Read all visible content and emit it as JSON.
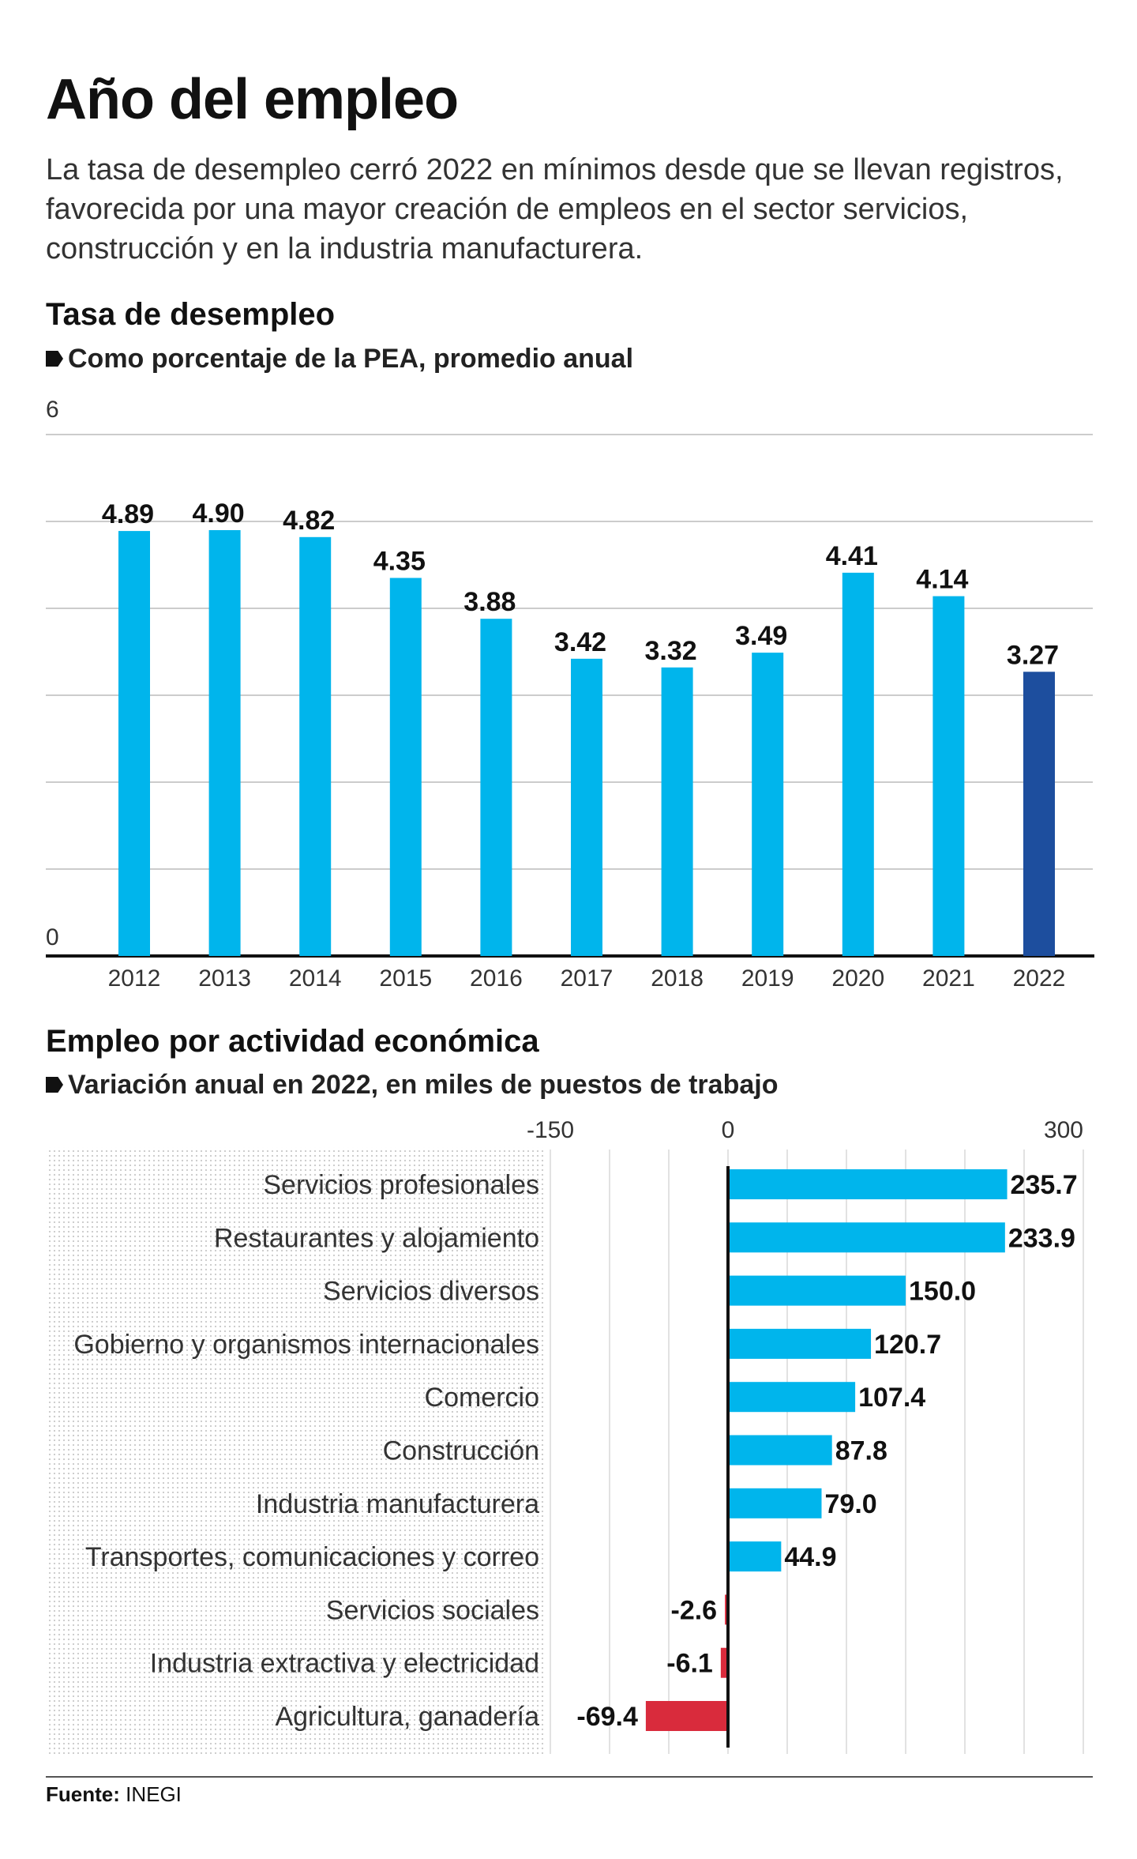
{
  "header": {
    "title": "Año del empleo",
    "subtitle": "La tasa de desempleo cerró 2022 en mínimos desde que se llevan registros, favorecida por una mayor creación de empleos en el sector servicios, construcción y en la industria manufacturera."
  },
  "colors": {
    "bar": "#00b5ec",
    "highlight": "#1d4e9e",
    "negative": "#d92b3c",
    "grid": "#cccccc"
  },
  "chart_data": [
    {
      "type": "bar",
      "title": "Tasa de desempleo",
      "subtitle": "Como porcentaje de la PEA, promedio anual",
      "categories": [
        "2012",
        "2013",
        "2014",
        "2015",
        "2016",
        "2017",
        "2018",
        "2019",
        "2020",
        "2021",
        "2022"
      ],
      "values": [
        4.89,
        4.9,
        4.82,
        4.35,
        3.88,
        3.42,
        3.32,
        3.49,
        4.41,
        4.14,
        3.27
      ],
      "value_labels": [
        "4.89",
        "4.90",
        "4.82",
        "4.35",
        "3.88",
        "3.42",
        "3.32",
        "3.49",
        "4.41",
        "4.14",
        "3.27"
      ],
      "highlight_index": 10,
      "ylim": [
        0,
        6
      ],
      "yticks": [
        "0",
        "6"
      ],
      "grid": true,
      "xlabel": "",
      "ylabel": ""
    },
    {
      "type": "bar",
      "orientation": "horizontal",
      "title": "Empleo por actividad económica",
      "subtitle": "Variación anual en 2022, en miles de puestos de trabajo",
      "categories": [
        "Servicios profesionales",
        "Restaurantes y alojamiento",
        "Servicios diversos",
        "Gobierno y organismos internacionales",
        "Comercio",
        "Construcción",
        "Industria manufacturera",
        "Transportes, comunicaciones y correo",
        "Servicios sociales",
        "Industria extractiva y electricidad",
        "Agricultura, ganadería"
      ],
      "values": [
        235.7,
        233.9,
        150.0,
        120.7,
        107.4,
        87.8,
        79.0,
        44.9,
        -2.6,
        -6.1,
        -69.4
      ],
      "value_labels": [
        "235.7",
        "233.9",
        "150.0",
        "120.7",
        "107.4",
        "87.8",
        "79.0",
        "44.9",
        "-2.6",
        "-6.1",
        "-69.4"
      ],
      "xlim": [
        -150,
        300
      ],
      "xticks": [
        "-150",
        "0",
        "300"
      ],
      "grid": true,
      "xlabel": "",
      "ylabel": ""
    }
  ],
  "footer": {
    "source_label": "Fuente:",
    "source_value": " INEGI"
  }
}
